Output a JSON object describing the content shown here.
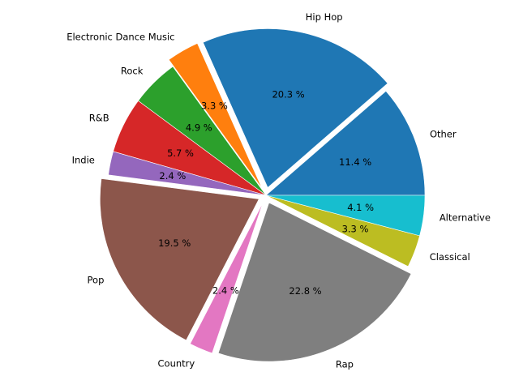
{
  "chart_data": {
    "type": "pie",
    "title": "",
    "value_format": "percent_1dp_space",
    "start_angle_deg": 0,
    "direction": "counterclockwise",
    "slices": [
      {
        "label": "Other",
        "value": 11.4,
        "pct_label": "11.4 %",
        "color": "#1f77b4",
        "explode": 0.0
      },
      {
        "label": "Hip Hop",
        "value": 20.3,
        "pct_label": "20.3 %",
        "color": "#1f77b4",
        "explode": 0.05
      },
      {
        "label": "Electronic Dance Music",
        "value": 3.3,
        "pct_label": "3.3 %",
        "color": "#ff7f0e",
        "explode": 0.05
      },
      {
        "label": "Rock",
        "value": 4.9,
        "pct_label": "4.9 %",
        "color": "#2ca02c",
        "explode": 0.0
      },
      {
        "label": "R&B",
        "value": 5.7,
        "pct_label": "5.7 %",
        "color": "#d62728",
        "explode": 0.0
      },
      {
        "label": "Indie",
        "value": 2.4,
        "pct_label": "2.4 %",
        "color": "#9467bd",
        "explode": 0.0
      },
      {
        "label": "Pop",
        "value": 19.5,
        "pct_label": "19.5 %",
        "color": "#8c564b",
        "explode": 0.05
      },
      {
        "label": "Country",
        "value": 2.4,
        "pct_label": "2.4 %",
        "color": "#e377c2",
        "explode": 0.05
      },
      {
        "label": "Rap",
        "value": 22.8,
        "pct_label": "22.8 %",
        "color": "#7f7f7f",
        "explode": 0.05
      },
      {
        "label": "Classical",
        "value": 3.3,
        "pct_label": "3.3 %",
        "color": "#bcbd22",
        "explode": 0.0
      },
      {
        "label": "Alternative",
        "value": 4.1,
        "pct_label": "4.1 %",
        "color": "#17becf",
        "explode": 0.0
      }
    ]
  }
}
